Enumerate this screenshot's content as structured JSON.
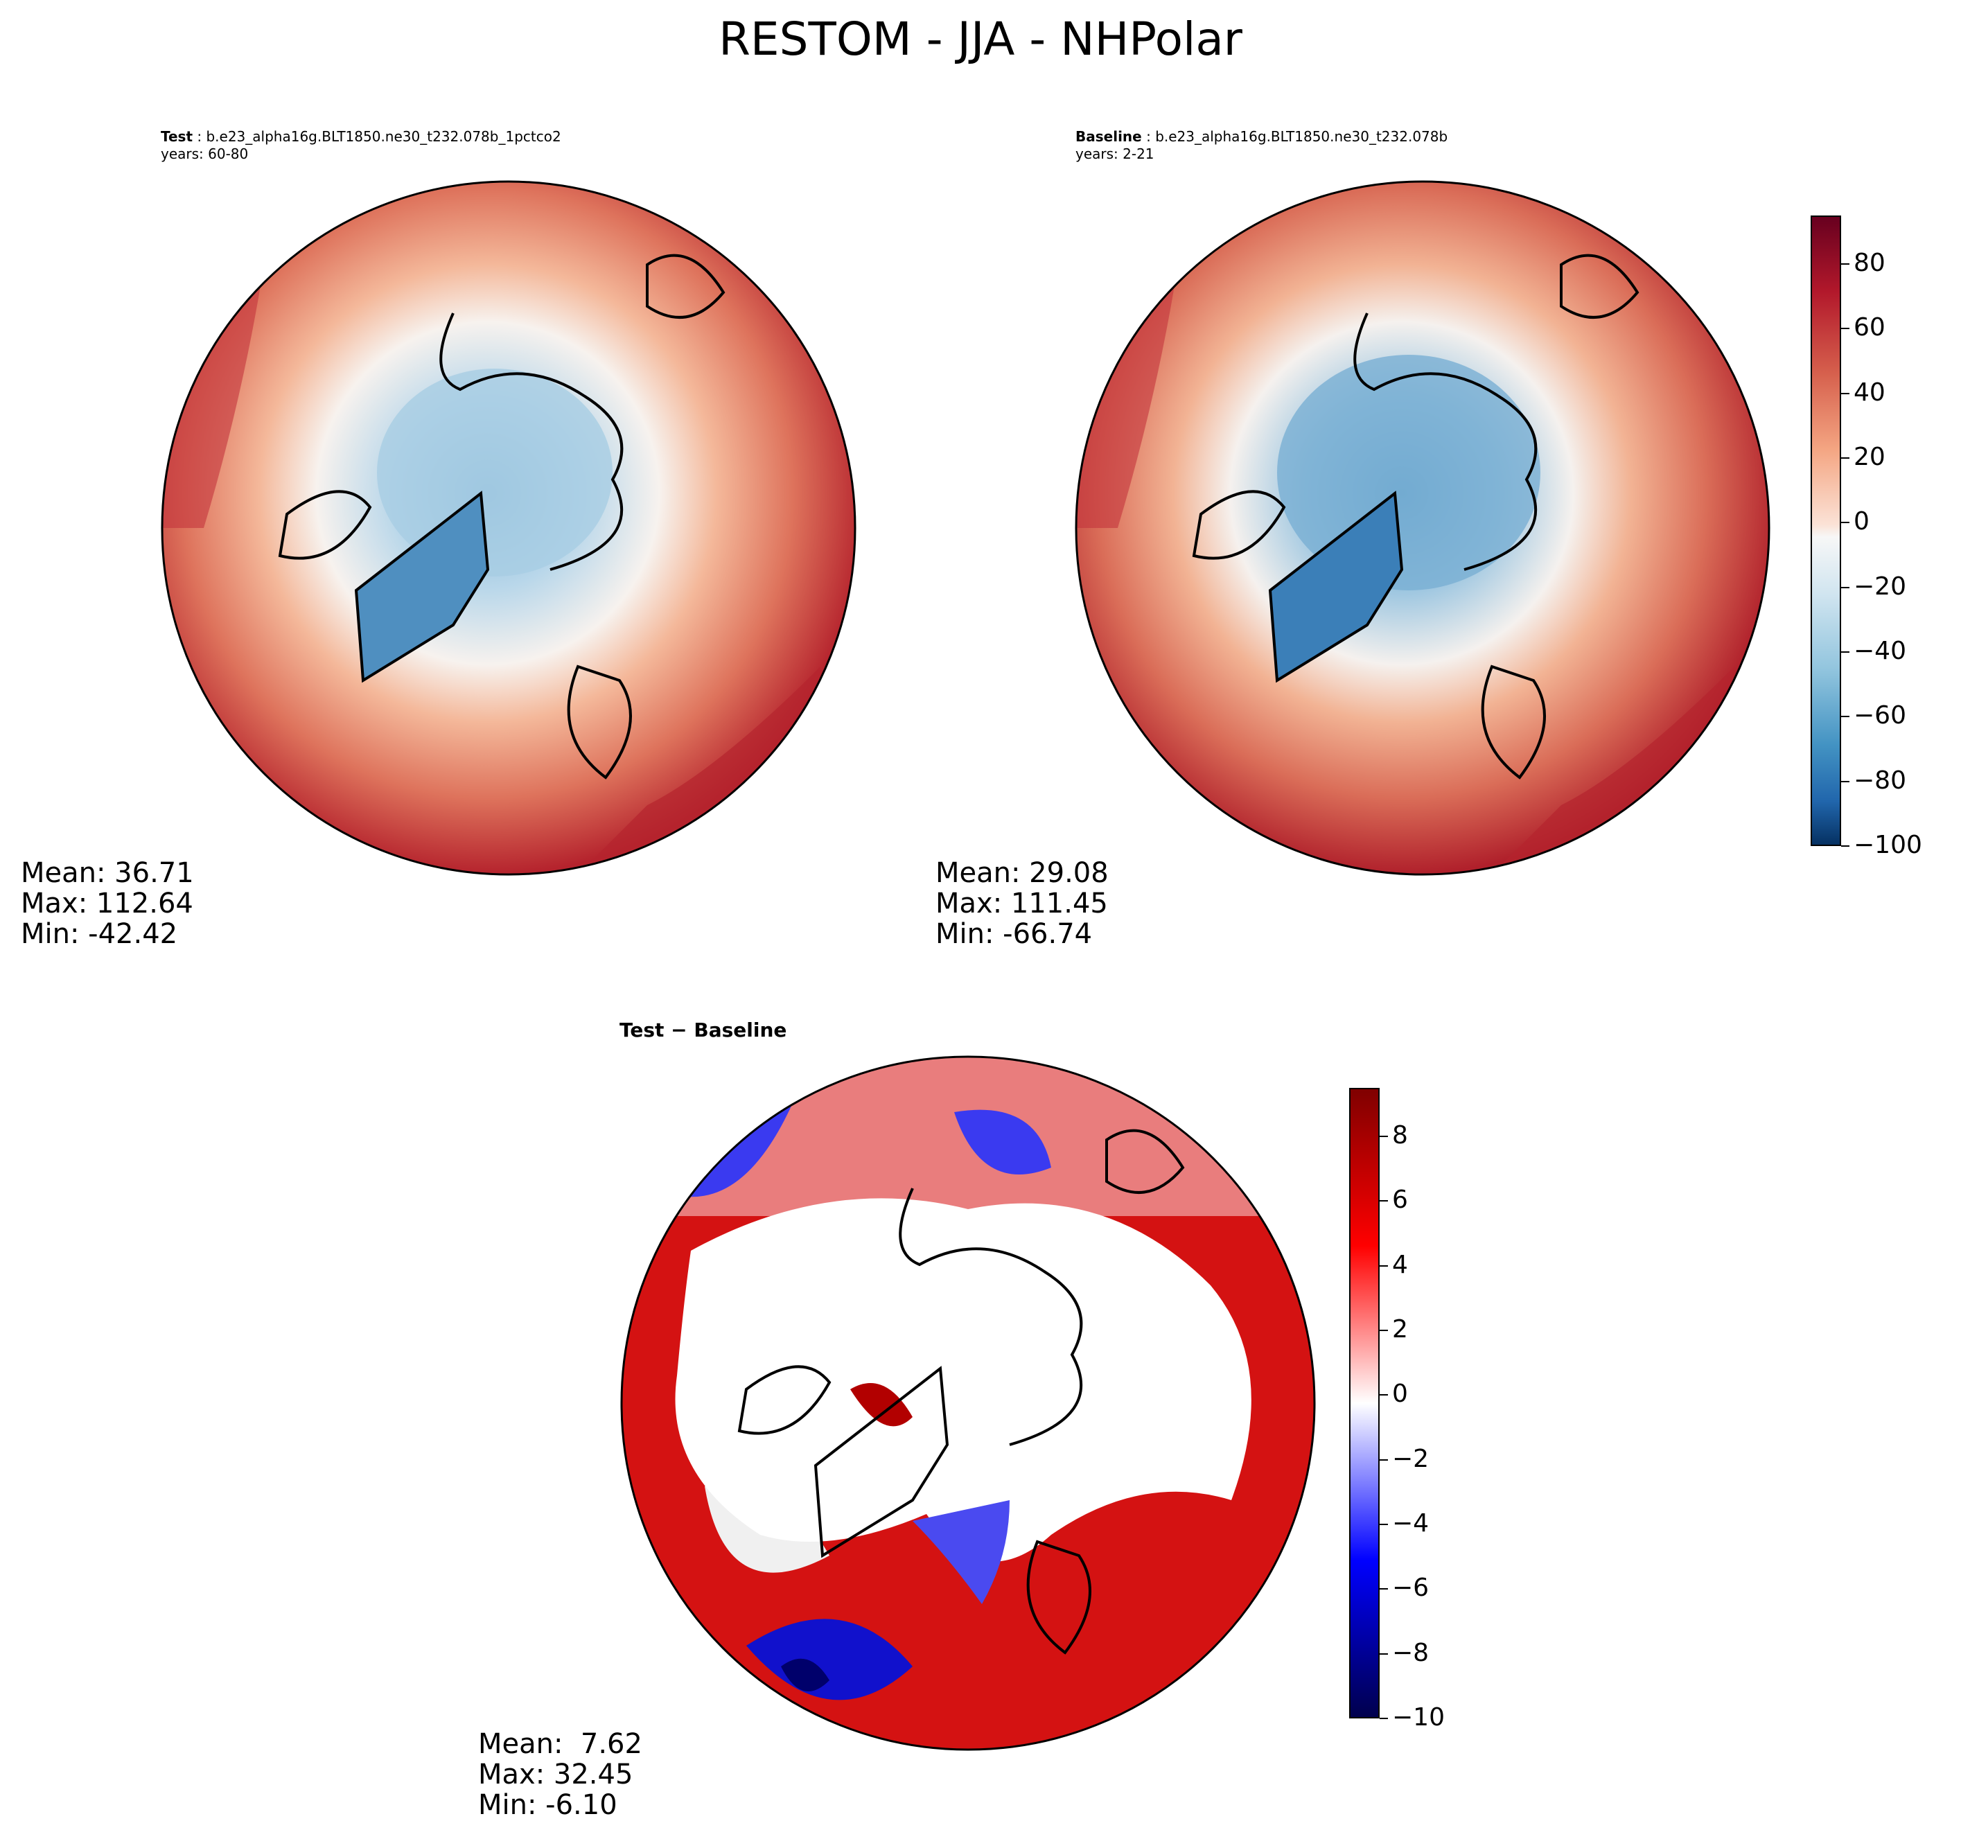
{
  "chart_data": [
    {
      "type": "heatmap",
      "projection": "north-polar-stereographic",
      "title": "RESTOM - JJA - NHPolar",
      "panel_label": "Test",
      "case": "b.e23_alpha16g.BLT1850.ne30_t232.078b_1pctco2",
      "years": "years: 60-80",
      "stats": {
        "mean": "Mean: 36.71",
        "max": "Max: 112.64",
        "min": "Min: -42.42"
      },
      "colorbar_shared": true
    },
    {
      "type": "heatmap",
      "projection": "north-polar-stereographic",
      "panel_label": "Baseline",
      "case": "b.e23_alpha16g.BLT1850.ne30_t232.078b",
      "years": "years: 2-21",
      "stats": {
        "mean": "Mean: 29.08",
        "max": "Max: 111.45",
        "min": "Min: -66.74"
      },
      "colorbar": {
        "min": -100,
        "max": 95,
        "ticks": [
          "80",
          "60",
          "40",
          "20",
          "0",
          "−20",
          "−40",
          "−60",
          "−80",
          "−100"
        ],
        "colormap": "RdBu_r"
      }
    },
    {
      "type": "heatmap",
      "projection": "north-polar-stereographic",
      "panel_label": "Test − Baseline",
      "stats": {
        "mean": "Mean:  7.62",
        "max": "Max: 32.45",
        "min": "Min: -6.10"
      },
      "colorbar": {
        "min": -10,
        "max": 9.5,
        "ticks": [
          "8",
          "6",
          "4",
          "2",
          "0",
          "−2",
          "−4",
          "−6",
          "−8",
          "−10"
        ],
        "colormap": "seismic"
      }
    }
  ]
}
